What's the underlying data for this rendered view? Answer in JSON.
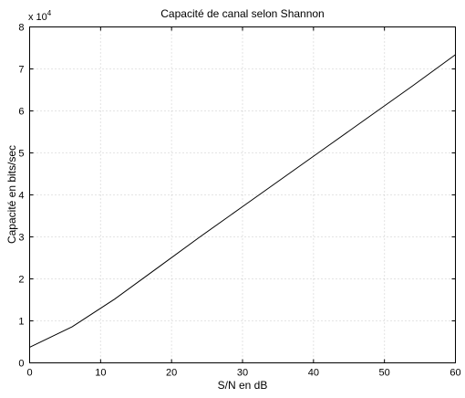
{
  "chart_data": {
    "type": "line",
    "title": "Capacité de canal selon Shannon",
    "xlabel": "S/N en dB",
    "ylabel": "Capacité en bits/sec",
    "y_scale_factor_label": "x 10",
    "y_scale_factor_exponent": "4",
    "xlim": [
      0,
      60
    ],
    "ylim": [
      0,
      8
    ],
    "x_ticks": [
      0,
      10,
      20,
      30,
      40,
      50,
      60
    ],
    "y_ticks": [
      0,
      1,
      2,
      3,
      4,
      5,
      6,
      7,
      8
    ],
    "x_tick_labels": [
      "0",
      "10",
      "20",
      "30",
      "40",
      "50",
      "60"
    ],
    "y_tick_labels": [
      "0",
      "1",
      "2",
      "3",
      "4",
      "5",
      "6",
      "7",
      "8"
    ],
    "grid": true,
    "series": [
      {
        "x": [
          0,
          6,
          12,
          18,
          24,
          30,
          36,
          42,
          48,
          54,
          60
        ],
        "y": [
          0.37,
          0.86,
          1.52,
          2.26,
          3.0,
          3.72,
          4.44,
          5.16,
          5.88,
          6.6,
          7.34
        ],
        "color": "#000000"
      }
    ]
  }
}
